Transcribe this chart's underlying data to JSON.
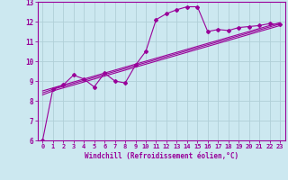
{
  "x_data": [
    0,
    1,
    2,
    3,
    4,
    5,
    6,
    7,
    8,
    9,
    10,
    11,
    12,
    13,
    14,
    15,
    16,
    17,
    18,
    19,
    20,
    21,
    22,
    23
  ],
  "y_observed": [
    6.0,
    8.6,
    8.8,
    9.3,
    9.1,
    8.7,
    9.4,
    9.0,
    8.9,
    9.8,
    10.5,
    12.1,
    12.4,
    12.6,
    12.75,
    12.75,
    11.5,
    11.6,
    11.55,
    11.7,
    11.75,
    11.8,
    11.9,
    11.85
  ],
  "y_regression1": [
    8.3,
    8.5,
    8.65,
    8.8,
    8.95,
    9.1,
    9.25,
    9.4,
    9.55,
    9.7,
    9.85,
    10.0,
    10.15,
    10.3,
    10.45,
    10.6,
    10.75,
    10.9,
    11.05,
    11.2,
    11.35,
    11.5,
    11.65,
    11.8
  ],
  "y_regression2": [
    8.4,
    8.58,
    8.73,
    8.88,
    9.03,
    9.18,
    9.33,
    9.48,
    9.63,
    9.78,
    9.93,
    10.08,
    10.23,
    10.38,
    10.53,
    10.68,
    10.83,
    10.98,
    11.13,
    11.28,
    11.43,
    11.58,
    11.73,
    11.88
  ],
  "y_regression3": [
    8.5,
    8.65,
    8.8,
    8.95,
    9.1,
    9.25,
    9.4,
    9.55,
    9.7,
    9.85,
    10.0,
    10.15,
    10.3,
    10.45,
    10.6,
    10.75,
    10.9,
    11.05,
    11.2,
    11.35,
    11.5,
    11.65,
    11.8,
    11.95
  ],
  "line_color": "#990099",
  "bg_color": "#cce8f0",
  "grid_color": "#b0cfd8",
  "xlabel": "Windchill (Refroidissement éolien,°C)",
  "ylim": [
    6,
    13
  ],
  "xlim": [
    -0.5,
    23.5
  ],
  "yticks": [
    6,
    7,
    8,
    9,
    10,
    11,
    12,
    13
  ],
  "xticks": [
    0,
    1,
    2,
    3,
    4,
    5,
    6,
    7,
    8,
    9,
    10,
    11,
    12,
    13,
    14,
    15,
    16,
    17,
    18,
    19,
    20,
    21,
    22,
    23
  ]
}
